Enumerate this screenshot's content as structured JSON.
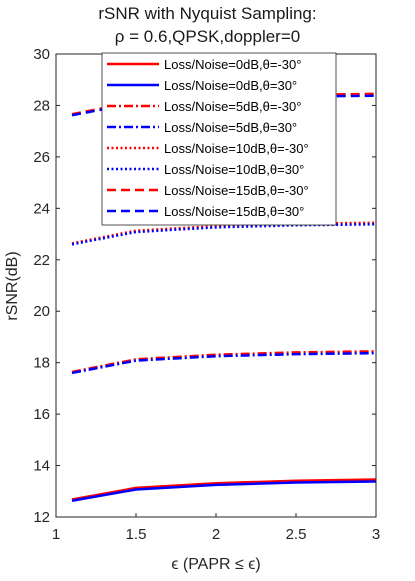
{
  "chart_data": {
    "type": "line",
    "title_line1": "rSNR with Nyquist Sampling:",
    "title_line2": "ρ = 0.6,QPSK,doppler=0",
    "xlabel": "ϵ (PAPR ≤ ϵ)",
    "ylabel": "rSNR(dB)",
    "xlim": [
      1,
      3
    ],
    "ylim": [
      12,
      30
    ],
    "xticks": [
      1,
      1.5,
      2,
      2.5,
      3
    ],
    "xtick_labels": [
      "1",
      "1.5",
      "2",
      "2.5",
      "3"
    ],
    "yticks": [
      12,
      14,
      16,
      18,
      20,
      22,
      24,
      26,
      28,
      30
    ],
    "ytick_labels": [
      "12",
      "14",
      "16",
      "18",
      "20",
      "22",
      "24",
      "26",
      "28",
      "30"
    ],
    "grid": false,
    "legend_position": "top",
    "x": [
      1.1,
      1.5,
      2,
      2.5,
      3
    ],
    "colors": {
      "red": "#ff0000",
      "blue": "#0000ff"
    },
    "series": [
      {
        "name": "Loss/Noise=0dB,θ=-30°",
        "color": "red",
        "dash": "solid",
        "values": [
          12.68,
          13.13,
          13.31,
          13.41,
          13.46
        ]
      },
      {
        "name": "Loss/Noise=0dB,θ=30°",
        "color": "blue",
        "dash": "solid",
        "values": [
          12.63,
          13.07,
          13.25,
          13.34,
          13.38
        ]
      },
      {
        "name": "Loss/Noise=5dB,θ=-30°",
        "color": "red",
        "dash": "dashdot",
        "values": [
          17.64,
          18.13,
          18.31,
          18.4,
          18.44
        ]
      },
      {
        "name": "Loss/Noise=5dB,θ=30°",
        "color": "blue",
        "dash": "dashdot",
        "values": [
          17.6,
          18.08,
          18.25,
          18.33,
          18.37
        ]
      },
      {
        "name": "Loss/Noise=10dB,θ=-30°",
        "color": "red",
        "dash": "dotted",
        "values": [
          22.64,
          23.13,
          23.31,
          23.4,
          23.44
        ]
      },
      {
        "name": "Loss/Noise=10dB,θ=30°",
        "color": "blue",
        "dash": "dotted",
        "values": [
          22.6,
          23.08,
          23.26,
          23.34,
          23.38
        ]
      },
      {
        "name": "Loss/Noise=15dB,θ=-30°",
        "color": "red",
        "dash": "dashed",
        "values": [
          27.66,
          28.14,
          28.32,
          28.41,
          28.45
        ]
      },
      {
        "name": "Loss/Noise=15dB,θ=30°",
        "color": "blue",
        "dash": "dashed",
        "values": [
          27.62,
          28.09,
          28.26,
          28.34,
          28.38
        ]
      }
    ]
  }
}
